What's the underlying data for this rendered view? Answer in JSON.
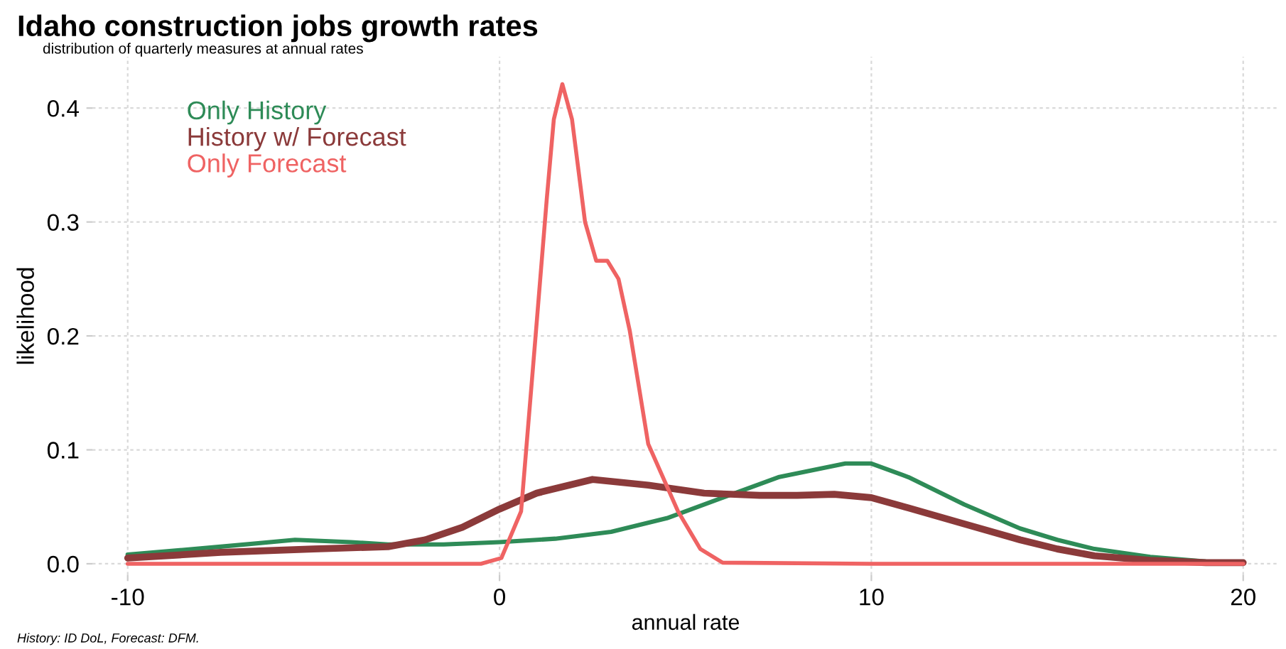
{
  "chart_data": {
    "type": "line",
    "title": "Idaho construction jobs growth rates",
    "subtitle": "distribution of quarterly measures at annual rates",
    "xlabel": "annual rate",
    "ylabel": "likelihood",
    "annotations": [
      "History: ID DoL, Forecast: DFM."
    ],
    "xlim": [
      -10.95,
      20.96
    ],
    "ylim": [
      -0.01,
      0.445
    ],
    "xticks": [
      -10,
      0,
      10,
      20
    ],
    "yticks": [
      {
        "value": 0,
        "label": "0.0"
      },
      {
        "value": 0.1,
        "label": "0.1"
      },
      {
        "value": 0.2,
        "label": "0.2"
      },
      {
        "value": 0.3,
        "label": "0.3"
      },
      {
        "value": 0.4,
        "label": "0.4"
      }
    ],
    "grid": true,
    "legend": "top left",
    "line_style": "solid",
    "series": [
      {
        "name": "Only History",
        "color": "#2e8b57",
        "x": [
          -10,
          -7.5,
          -5.5,
          -4,
          -3,
          -1.5,
          0,
          1.5,
          3,
          4.5,
          6,
          7.5,
          9.3,
          10,
          11,
          12.5,
          14,
          15,
          16,
          17.5,
          19,
          20
        ],
        "values": [
          0.008,
          0.015,
          0.021,
          0.019,
          0.017,
          0.017,
          0.019,
          0.022,
          0.028,
          0.04,
          0.058,
          0.076,
          0.088,
          0.088,
          0.076,
          0.052,
          0.031,
          0.021,
          0.013,
          0.006,
          0.002,
          0.001
        ]
      },
      {
        "name": "History w/ Forecast",
        "color": "#8b3a3a",
        "x": [
          -10,
          -7.5,
          -5,
          -3,
          -2,
          -1,
          0,
          1,
          2.5,
          4,
          5.5,
          7,
          8,
          9,
          10,
          11,
          12.5,
          14,
          15,
          16,
          17.5,
          19,
          20
        ],
        "values": [
          0.005,
          0.01,
          0.013,
          0.015,
          0.021,
          0.032,
          0.048,
          0.062,
          0.074,
          0.069,
          0.062,
          0.06,
          0.06,
          0.061,
          0.058,
          0.049,
          0.035,
          0.021,
          0.013,
          0.007,
          0.003,
          0.001,
          0.001
        ]
      },
      {
        "name": "Only Forecast",
        "color": "#ef6363",
        "x": [
          -10,
          -0.5,
          0.05,
          0.58,
          0.96,
          1.27,
          1.46,
          1.69,
          1.95,
          2.3,
          2.6,
          2.9,
          3.2,
          3.5,
          4.0,
          4.8,
          5.4,
          6,
          10,
          20
        ],
        "values": [
          0,
          0,
          0.005,
          0.046,
          0.196,
          0.32,
          0.39,
          0.421,
          0.39,
          0.3,
          0.266,
          0.266,
          0.25,
          0.205,
          0.105,
          0.046,
          0.013,
          0.001,
          0,
          0
        ]
      }
    ]
  }
}
